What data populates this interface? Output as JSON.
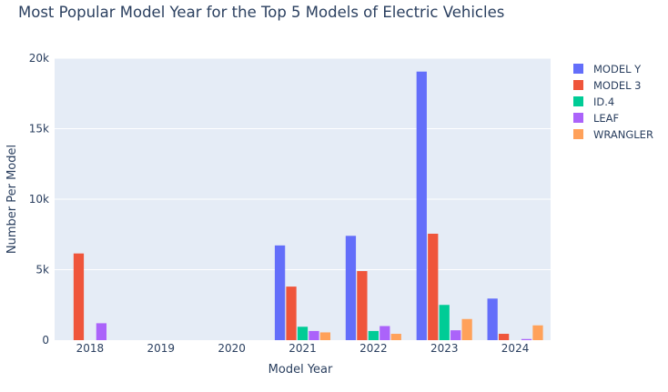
{
  "chart_data": {
    "type": "bar",
    "title": "Most Popular Model Year for the Top 5 Models of Electric Vehicles",
    "xlabel": "Model Year",
    "ylabel": "Number Per Model",
    "categories": [
      "2018",
      "2019",
      "2020",
      "2021",
      "2022",
      "2023",
      "2024"
    ],
    "ylim": [
      0,
      20000
    ],
    "yticks": [
      0,
      5000,
      10000,
      15000,
      20000
    ],
    "ytick_labels": [
      "0",
      "5k",
      "10k",
      "15k",
      "20k"
    ],
    "grid": true,
    "legend_position": "top-right",
    "series": [
      {
        "name": "MODEL Y",
        "color": "#636efa",
        "values": [
          0,
          0,
          0,
          6720,
          7400,
          19050,
          2950
        ]
      },
      {
        "name": "MODEL 3",
        "color": "#ef553b",
        "values": [
          6150,
          0,
          0,
          3800,
          4900,
          7550,
          450
        ]
      },
      {
        "name": "ID.4",
        "color": "#00cc96",
        "values": [
          0,
          0,
          0,
          950,
          650,
          2500,
          0
        ]
      },
      {
        "name": "LEAF",
        "color": "#ab63fa",
        "values": [
          1200,
          0,
          0,
          650,
          1000,
          700,
          80
        ]
      },
      {
        "name": "WRANGLER",
        "color": "#ffa15a",
        "values": [
          0,
          0,
          0,
          550,
          450,
          1500,
          1050
        ]
      }
    ]
  }
}
